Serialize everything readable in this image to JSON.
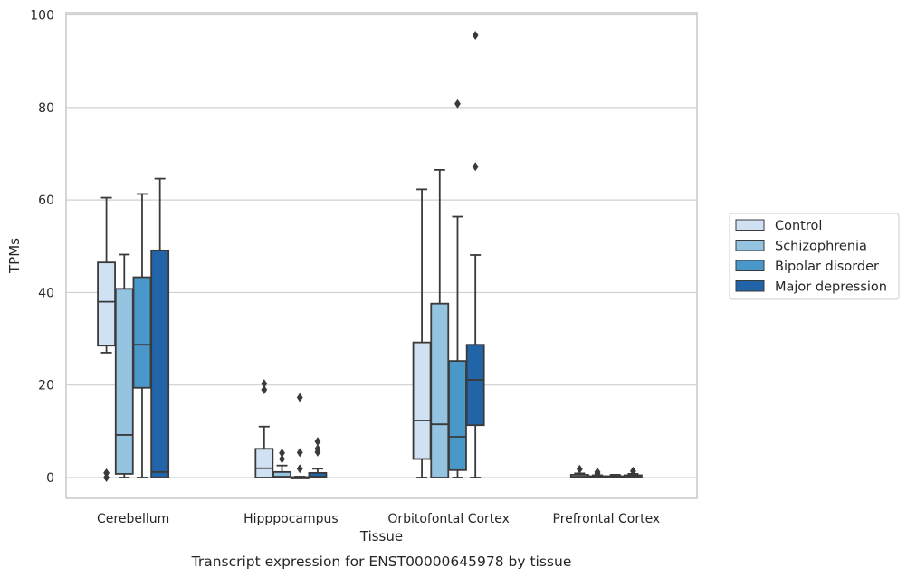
{
  "chart_data": {
    "type": "box",
    "title": "",
    "caption": "Transcript expression for ENST00000645978 by tissue",
    "xlabel": "Tissue",
    "ylabel": "TPMs",
    "ylim": [
      -4.5,
      100.5
    ],
    "yticks": [
      0,
      20,
      40,
      60,
      80,
      100
    ],
    "grid": "horizontal",
    "legend_position": "right",
    "categories": [
      "Cerebellum",
      "Hipppocampus",
      "Orbitofontal Cortex",
      "Prefrontal Cortex"
    ],
    "series": [
      {
        "name": "Control",
        "color": "#cfe1f2",
        "boxes": [
          {
            "whisker_low": 27,
            "q1": 28.5,
            "median": 38,
            "q3": 46.5,
            "whisker_high": 60.5,
            "outliers": [
              0,
              1
            ]
          },
          {
            "whisker_low": 0,
            "q1": 0,
            "median": 2,
            "q3": 6.2,
            "whisker_high": 11,
            "outliers": [
              19,
              20.3
            ]
          },
          {
            "whisker_low": 0,
            "q1": 4,
            "median": 12.3,
            "q3": 29.2,
            "whisker_high": 62.3,
            "outliers": []
          },
          {
            "whisker_low": 0,
            "q1": 0,
            "median": 0.2,
            "q3": 0.6,
            "whisker_high": 0.9,
            "outliers": [
              1.8
            ]
          }
        ]
      },
      {
        "name": "Schizophrenia",
        "color": "#94c4df",
        "boxes": [
          {
            "whisker_low": 0,
            "q1": 0.8,
            "median": 9.2,
            "q3": 40.8,
            "whisker_high": 48.2,
            "outliers": []
          },
          {
            "whisker_low": 0,
            "q1": 0,
            "median": 0.2,
            "q3": 1.2,
            "whisker_high": 2.6,
            "outliers": [
              4,
              5.3
            ]
          },
          {
            "whisker_low": 0,
            "q1": 0,
            "median": 11.5,
            "q3": 37.6,
            "whisker_high": 66.5,
            "outliers": []
          },
          {
            "whisker_low": 0,
            "q1": 0,
            "median": 0.1,
            "q3": 0.3,
            "whisker_high": 0.5,
            "outliers": [
              1.2,
              0.9
            ]
          }
        ]
      },
      {
        "name": "Bipolar disorder",
        "color": "#4a98c9",
        "boxes": [
          {
            "whisker_low": 0,
            "q1": 19.4,
            "median": 28.7,
            "q3": 43.3,
            "whisker_high": 61.3,
            "outliers": []
          },
          {
            "whisker_low": 0,
            "q1": 0,
            "median": 0,
            "q3": 0.1,
            "whisker_high": 0.2,
            "outliers": [
              1.9,
              5.4,
              17.3
            ]
          },
          {
            "whisker_low": 0,
            "q1": 1.6,
            "median": 8.8,
            "q3": 25.2,
            "whisker_high": 56.4,
            "outliers": [
              80.8
            ]
          },
          {
            "whisker_low": 0,
            "q1": 0,
            "median": 0.1,
            "q3": 0.3,
            "whisker_high": 0.6,
            "outliers": []
          }
        ]
      },
      {
        "name": "Major depression",
        "color": "#2264a8",
        "boxes": [
          {
            "whisker_low": 0,
            "q1": 0,
            "median": 1.2,
            "q3": 49.1,
            "whisker_high": 64.6,
            "outliers": []
          },
          {
            "whisker_low": 0,
            "q1": 0,
            "median": 0.2,
            "q3": 1,
            "whisker_high": 1.9,
            "outliers": [
              5.5,
              6.2,
              7.8
            ]
          },
          {
            "whisker_low": 0,
            "q1": 11.3,
            "median": 21.1,
            "q3": 28.7,
            "whisker_high": 48.1,
            "outliers": [
              67.2,
              95.6
            ]
          },
          {
            "whisker_low": 0,
            "q1": 0,
            "median": 0.2,
            "q3": 0.5,
            "whisker_high": 0.8,
            "outliers": [
              1.4
            ]
          }
        ]
      }
    ]
  }
}
